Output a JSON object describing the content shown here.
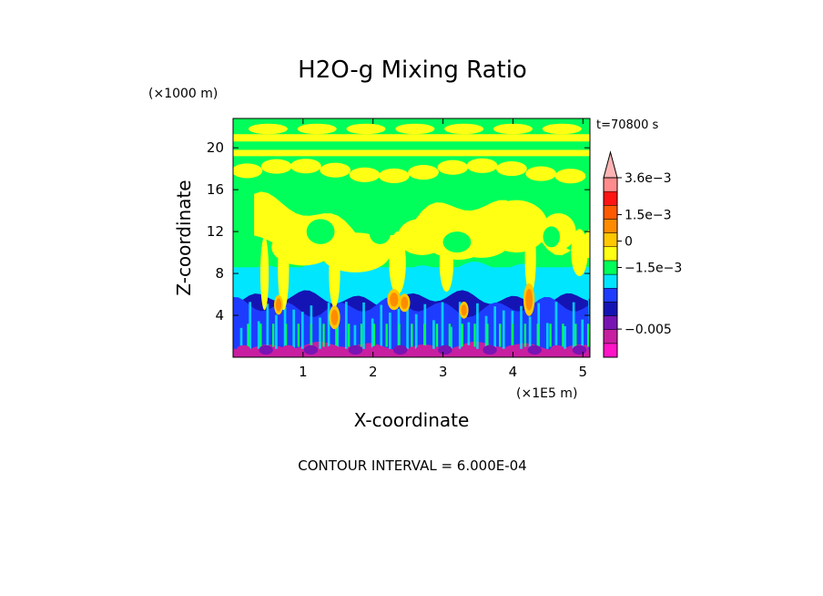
{
  "chart_data": {
    "type": "heatmap",
    "title": "H2O-g Mixing Ratio",
    "xlabel": "X-coordinate",
    "ylabel": "Z-coordinate",
    "x_unit_label": "(×1E5 m)",
    "y_unit_label": "(×1000 m)",
    "xlim": [
      0,
      5.1
    ],
    "ylim": [
      0,
      22.8
    ],
    "x_ticks": [
      "1",
      "2",
      "3",
      "4",
      "5"
    ],
    "y_ticks": [
      "4",
      "8",
      "12",
      "16",
      "20"
    ],
    "x_tick_values": [
      1,
      2,
      3,
      4,
      5
    ],
    "y_tick_values": [
      4,
      8,
      12,
      16,
      20
    ],
    "time_label": "t=70800 s",
    "contour_interval_label": "CONTOUR INTERVAL = 6.000E-04",
    "colorbar": {
      "colors": [
        "#ff14c8",
        "#c81ea0",
        "#7814b4",
        "#1414b4",
        "#1e3cff",
        "#00e6ff",
        "#00ff5a",
        "#ffff14",
        "#ffc800",
        "#ff8c00",
        "#ff5a00",
        "#ff1414",
        "#ff8c8c",
        "#ffb4b4"
      ],
      "labels": [
        "−0.005",
        "−1.5e−3",
        "0",
        "1.5e−3",
        "3.6e−3"
      ],
      "label_values": [
        -0.005,
        -0.0015,
        0,
        0.0015,
        0.0036
      ],
      "min": -0.0066,
      "max": 0.0036
    },
    "background_color": "#00ff5a",
    "field": {
      "bands": [
        {
          "z0": 0.0,
          "z1": 1.0,
          "level": "magenta"
        },
        {
          "z0": 0.7,
          "z1": 5.6,
          "level": "dark-blue"
        },
        {
          "z0": 1.0,
          "z1": 5.0,
          "level": "blue"
        },
        {
          "z0": 5.6,
          "z1": 8.6,
          "level": "cyan"
        },
        {
          "z0": 8.6,
          "z1": 22.8,
          "level": "green"
        }
      ],
      "upper_strips": [
        {
          "z0": 19.2,
          "z1": 19.8,
          "color": "#ffff14"
        },
        {
          "z0": 20.6,
          "z1": 21.3,
          "color": "#ffff14"
        },
        {
          "z0": 21.8,
          "z1": 22.8,
          "color": "#00ff5a"
        }
      ],
      "plumes": [
        {
          "x": 0.45,
          "z": 8.0,
          "w": 0.06,
          "h": 7.0
        },
        {
          "x": 0.72,
          "z": 8.5,
          "w": 0.08,
          "h": 8.0
        },
        {
          "x": 1.0,
          "z": 10.5,
          "w": 0.45,
          "h": 3.5
        },
        {
          "x": 1.45,
          "z": 8.0,
          "w": 0.08,
          "h": 6.5
        },
        {
          "x": 1.75,
          "z": 10.0,
          "w": 0.5,
          "h": 3.8
        },
        {
          "x": 2.35,
          "z": 9.0,
          "w": 0.12,
          "h": 6.0
        },
        {
          "x": 2.7,
          "z": 11.5,
          "w": 0.35,
          "h": 3.5
        },
        {
          "x": 3.05,
          "z": 9.0,
          "w": 0.1,
          "h": 5.5
        },
        {
          "x": 3.55,
          "z": 11.5,
          "w": 0.45,
          "h": 4.0
        },
        {
          "x": 4.05,
          "z": 12.5,
          "w": 0.45,
          "h": 5.0
        },
        {
          "x": 4.25,
          "z": 9.5,
          "w": 0.08,
          "h": 7.0
        },
        {
          "x": 4.65,
          "z": 12.0,
          "w": 0.25,
          "h": 3.5
        },
        {
          "x": 4.95,
          "z": 10.0,
          "w": 0.12,
          "h": 4.5
        }
      ],
      "hot_cores": [
        {
          "x": 1.45,
          "z": 3.8,
          "w": 0.05,
          "h": 1.8
        },
        {
          "x": 2.3,
          "z": 5.5,
          "w": 0.06,
          "h": 1.6
        },
        {
          "x": 2.45,
          "z": 5.2,
          "w": 0.05,
          "h": 1.4
        },
        {
          "x": 4.23,
          "z": 5.5,
          "w": 0.05,
          "h": 2.5
        },
        {
          "x": 0.65,
          "z": 5.0,
          "w": 0.04,
          "h": 1.5
        },
        {
          "x": 3.3,
          "z": 4.5,
          "w": 0.04,
          "h": 1.3
        }
      ]
    }
  }
}
